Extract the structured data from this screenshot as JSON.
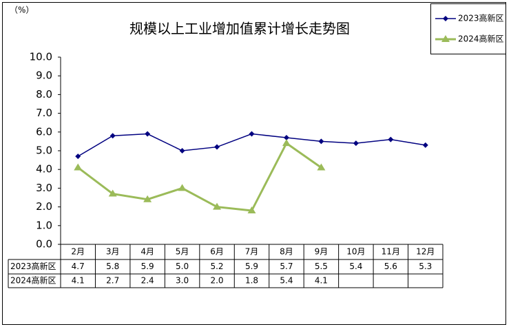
{
  "chart_data": {
    "type": "line",
    "title": "规模以上工业增加值累计增长走势图",
    "y_unit": "（%）",
    "categories": [
      "2月",
      "3月",
      "4月",
      "5月",
      "6月",
      "7月",
      "8月",
      "9月",
      "10月",
      "11月",
      "12月"
    ],
    "series": [
      {
        "name": "2023高新区",
        "color": "#000080",
        "marker": "diamond",
        "values": [
          4.7,
          5.8,
          5.9,
          5.0,
          5.2,
          5.9,
          5.7,
          5.5,
          5.4,
          5.6,
          5.3
        ],
        "value_labels": [
          "4.7",
          "5.8",
          "5.9",
          "5.0",
          "5.2",
          "5.9",
          "5.7",
          "5.5",
          "5.4",
          "5.6",
          "5.3"
        ]
      },
      {
        "name": "2024高新区",
        "color": "#9bbb59",
        "marker": "triangle",
        "values": [
          4.1,
          2.7,
          2.4,
          3.0,
          2.0,
          1.8,
          5.4,
          4.1,
          null,
          null,
          null
        ],
        "value_labels": [
          "4.1",
          "2.7",
          "2.4",
          "3.0",
          "2.0",
          "1.8",
          "5.4",
          "4.1",
          null,
          null,
          null
        ]
      }
    ],
    "ylim": [
      0,
      10
    ],
    "yticks": [
      {
        "value": 0,
        "label": "0.0"
      },
      {
        "value": 1,
        "label": "1.0"
      },
      {
        "value": 2,
        "label": "2.0"
      },
      {
        "value": 3,
        "label": "3.0"
      },
      {
        "value": 4,
        "label": "4.0"
      },
      {
        "value": 5,
        "label": "5.0"
      },
      {
        "value": 6,
        "label": "6.0"
      },
      {
        "value": 7,
        "label": "7.0"
      },
      {
        "value": 8,
        "label": "8.0"
      },
      {
        "value": 9,
        "label": "9.0"
      },
      {
        "value": 10,
        "label": "10.0"
      }
    ],
    "grid": false,
    "legend": "top-right",
    "data_table": true
  }
}
